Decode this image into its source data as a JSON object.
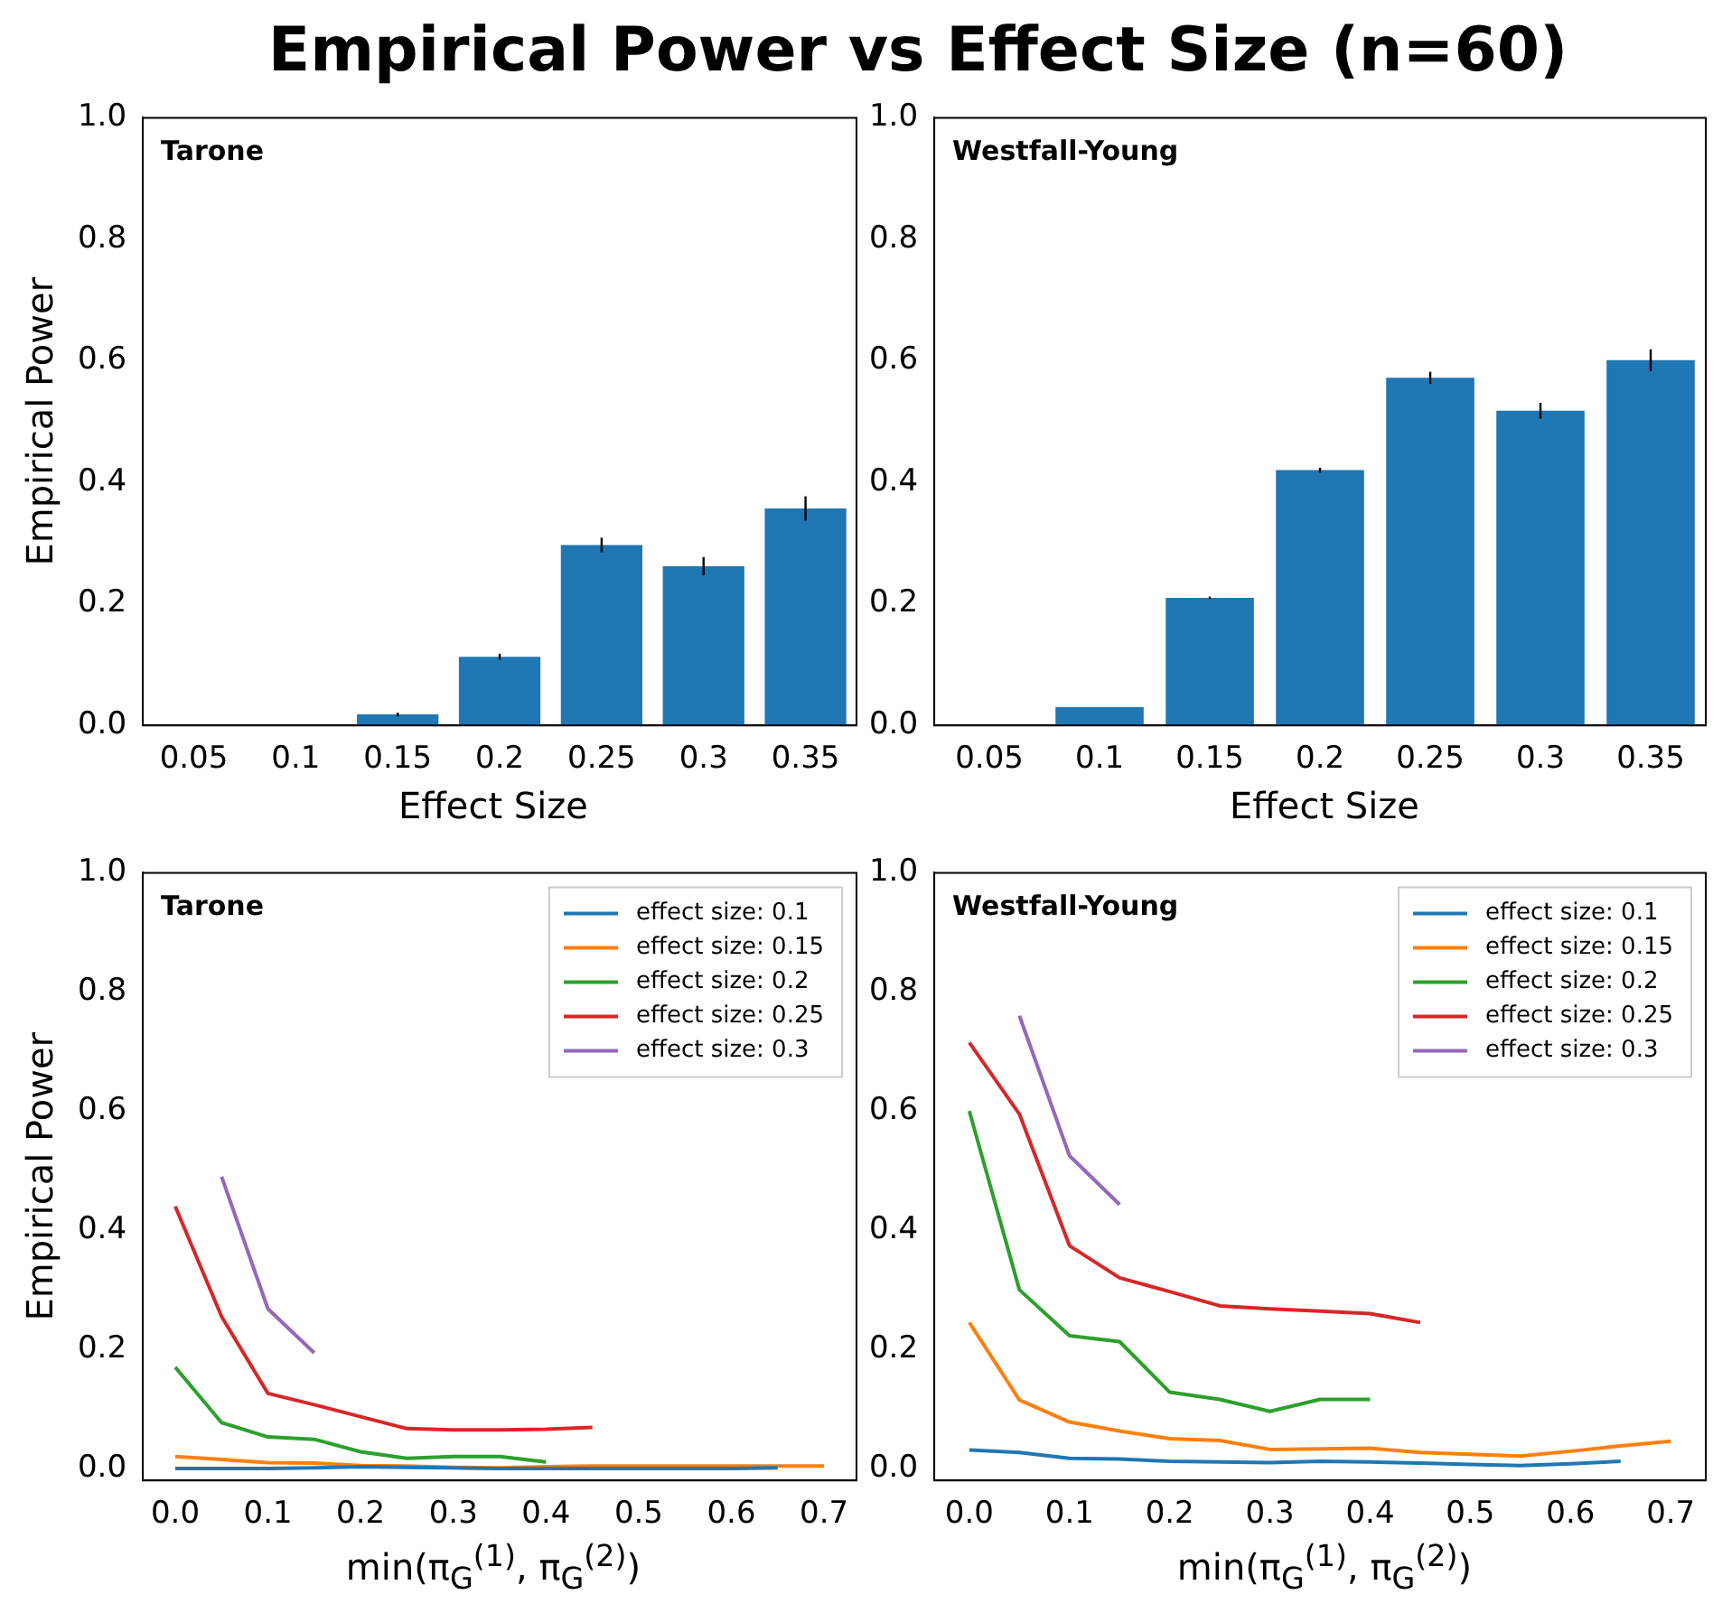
{
  "chart_data": [
    {
      "type": "bar",
      "title": "Empirical Power vs Effect Size (n=60)",
      "annotations": [
        "Tarone"
      ],
      "xlabel": "Effect Size",
      "ylabel": "Empirical Power",
      "categories": [
        "0.05",
        "0.1",
        "0.15",
        "0.2",
        "0.25",
        "0.3",
        "0.35"
      ],
      "series": [
        {
          "color": "#1f77b4",
          "values": [
            0,
            0,
            0.018,
            0.113,
            0.297,
            0.262,
            0.357
          ],
          "errors": [
            null,
            null,
            0.003,
            0.005,
            0.012,
            0.015,
            0.02
          ]
        }
      ],
      "ylim": [
        0,
        1
      ],
      "yticks": [
        {
          "value": 0,
          "label": "0.0"
        },
        {
          "value": 0.2,
          "label": "0.2"
        },
        {
          "value": 0.4,
          "label": "0.4"
        },
        {
          "value": 0.6,
          "label": "0.6"
        },
        {
          "value": 0.8,
          "label": "0.8"
        },
        {
          "value": 1,
          "label": "1.0"
        }
      ],
      "grid": false,
      "legend": false
    },
    {
      "type": "bar",
      "annotations": [
        "Westfall-Young"
      ],
      "xlabel": "Effect Size",
      "categories": [
        "0.05",
        "0.1",
        "0.15",
        "0.2",
        "0.25",
        "0.3",
        "0.35"
      ],
      "series": [
        {
          "color": "#1f77b4",
          "values": [
            0,
            0.03,
            0.21,
            0.42,
            0.572,
            0.518,
            0.601
          ],
          "errors": [
            null,
            null,
            0.002,
            0.004,
            0.01,
            0.013,
            0.018
          ]
        }
      ],
      "ylim": [
        0,
        1
      ],
      "yticks": [
        {
          "value": 0,
          "label": "0.0"
        },
        {
          "value": 0.2,
          "label": "0.2"
        },
        {
          "value": 0.4,
          "label": "0.4"
        },
        {
          "value": 0.6,
          "label": "0.6"
        },
        {
          "value": 0.8,
          "label": "0.8"
        },
        {
          "value": 1,
          "label": "1.0"
        }
      ],
      "grid": false,
      "legend": false
    },
    {
      "type": "line",
      "annotations": [
        "Tarone"
      ],
      "xlabel": "min(π$_{G}$$^{(1)}$, π$_{G}$$^{(2)}$)",
      "ylabel": "Empirical Power",
      "series": [
        {
          "name": "effect size: 0.1",
          "color": "#1f77b4",
          "x": [
            0,
            0.05,
            0.1,
            0.15,
            0.2,
            0.25,
            0.3,
            0.35,
            0.4,
            0.45,
            0.5,
            0.55,
            0.6,
            0.65
          ],
          "values": [
            0,
            0,
            0,
            0.001,
            0.003,
            0.002,
            0.001,
            0,
            0,
            0,
            0,
            0,
            0,
            0.001
          ]
        },
        {
          "name": "effect size: 0.15",
          "color": "#ff7f0e",
          "x": [
            0,
            0.05,
            0.1,
            0.15,
            0.2,
            0.25,
            0.3,
            0.35,
            0.4,
            0.45,
            0.5,
            0.55,
            0.6,
            0.65,
            0.7
          ],
          "values": [
            0.02,
            0.015,
            0.01,
            0.009,
            0.005,
            0.004,
            0.002,
            0.001,
            0.003,
            0.004,
            0.004,
            0.004,
            0.004,
            0.004,
            0.004
          ]
        },
        {
          "name": "effect size: 0.2",
          "color": "#2ca02c",
          "x": [
            0,
            0.05,
            0.1,
            0.15,
            0.2,
            0.25,
            0.3,
            0.35,
            0.4
          ],
          "values": [
            0.17,
            0.077,
            0.053,
            0.049,
            0.028,
            0.017,
            0.02,
            0.02,
            0.011
          ]
        },
        {
          "name": "effect size: 0.25",
          "color": "#d62728",
          "x": [
            0,
            0.05,
            0.1,
            0.15,
            0.2,
            0.25,
            0.3,
            0.35,
            0.4,
            0.45
          ],
          "values": [
            0.44,
            0.255,
            0.126,
            0.107,
            0.087,
            0.067,
            0.065,
            0.065,
            0.066,
            0.069
          ]
        },
        {
          "name": "effect size: 0.3",
          "color": "#9467bd",
          "x": [
            0.05,
            0.1,
            0.15
          ],
          "values": [
            0.49,
            0.268,
            0.194
          ]
        }
      ],
      "xlim": [
        -0.035,
        0.735
      ],
      "xticks": [
        {
          "value": 0,
          "label": "0.0"
        },
        0.1,
        0.2,
        0.3,
        0.4,
        0.5,
        0.6,
        0.7
      ],
      "ylim": [
        -0.02,
        1
      ],
      "yticks": [
        {
          "value": 0,
          "label": "0.0"
        },
        {
          "value": 0.2,
          "label": "0.2"
        },
        {
          "value": 0.4,
          "label": "0.4"
        },
        {
          "value": 0.6,
          "label": "0.6"
        },
        {
          "value": 0.8,
          "label": "0.8"
        },
        {
          "value": 1,
          "label": "1.0"
        }
      ],
      "grid": false,
      "legend": "top right",
      "marker": "none",
      "line_style": "solid"
    },
    {
      "type": "line",
      "annotations": [
        "Westfall-Young"
      ],
      "xlabel": "min(π$_{G}$$^{(1)}$, π$_{G}$$^{(2)}$)",
      "series": [
        {
          "name": "effect size: 0.1",
          "color": "#1f77b4",
          "x": [
            0,
            0.05,
            0.1,
            0.15,
            0.2,
            0.25,
            0.3,
            0.35,
            0.4,
            0.45,
            0.5,
            0.55,
            0.6,
            0.65
          ],
          "values": [
            0.031,
            0.027,
            0.017,
            0.016,
            0.012,
            0.011,
            0.01,
            0.012,
            0.011,
            0.009,
            0.007,
            0.005,
            0.008,
            0.012
          ]
        },
        {
          "name": "effect size: 0.15",
          "color": "#ff7f0e",
          "x": [
            0,
            0.05,
            0.1,
            0.15,
            0.2,
            0.25,
            0.3,
            0.35,
            0.4,
            0.45,
            0.5,
            0.55,
            0.6,
            0.65,
            0.7
          ],
          "values": [
            0.245,
            0.115,
            0.078,
            0.063,
            0.05,
            0.047,
            0.032,
            0.033,
            0.034,
            0.027,
            0.024,
            0.021,
            0.029,
            0.038,
            0.046
          ]
        },
        {
          "name": "effect size: 0.2",
          "color": "#2ca02c",
          "x": [
            0,
            0.05,
            0.1,
            0.15,
            0.2,
            0.25,
            0.3,
            0.35,
            0.4
          ],
          "values": [
            0.6,
            0.3,
            0.223,
            0.213,
            0.128,
            0.116,
            0.096,
            0.116,
            0.116
          ]
        },
        {
          "name": "effect size: 0.25",
          "color": "#d62728",
          "x": [
            0,
            0.05,
            0.1,
            0.15,
            0.2,
            0.25,
            0.3,
            0.35,
            0.4,
            0.45
          ],
          "values": [
            0.715,
            0.595,
            0.374,
            0.32,
            0.297,
            0.273,
            0.268,
            0.264,
            0.26,
            0.245
          ]
        },
        {
          "name": "effect size: 0.3",
          "color": "#9467bd",
          "x": [
            0.05,
            0.1,
            0.15
          ],
          "values": [
            0.76,
            0.525,
            0.443
          ]
        }
      ],
      "xlim": [
        -0.035,
        0.735
      ],
      "xticks": [
        {
          "value": 0,
          "label": "0.0"
        },
        0.1,
        0.2,
        0.3,
        0.4,
        0.5,
        0.6,
        0.7
      ],
      "ylim": [
        -0.02,
        1
      ],
      "yticks": [
        {
          "value": 0,
          "label": "0.0"
        },
        {
          "value": 0.2,
          "label": "0.2"
        },
        {
          "value": 0.4,
          "label": "0.4"
        },
        {
          "value": 0.6,
          "label": "0.6"
        },
        {
          "value": 0.8,
          "label": "0.8"
        },
        {
          "value": 1,
          "label": "1.0"
        }
      ],
      "grid": false,
      "legend": "top right",
      "marker": "none",
      "line_style": "solid"
    }
  ]
}
